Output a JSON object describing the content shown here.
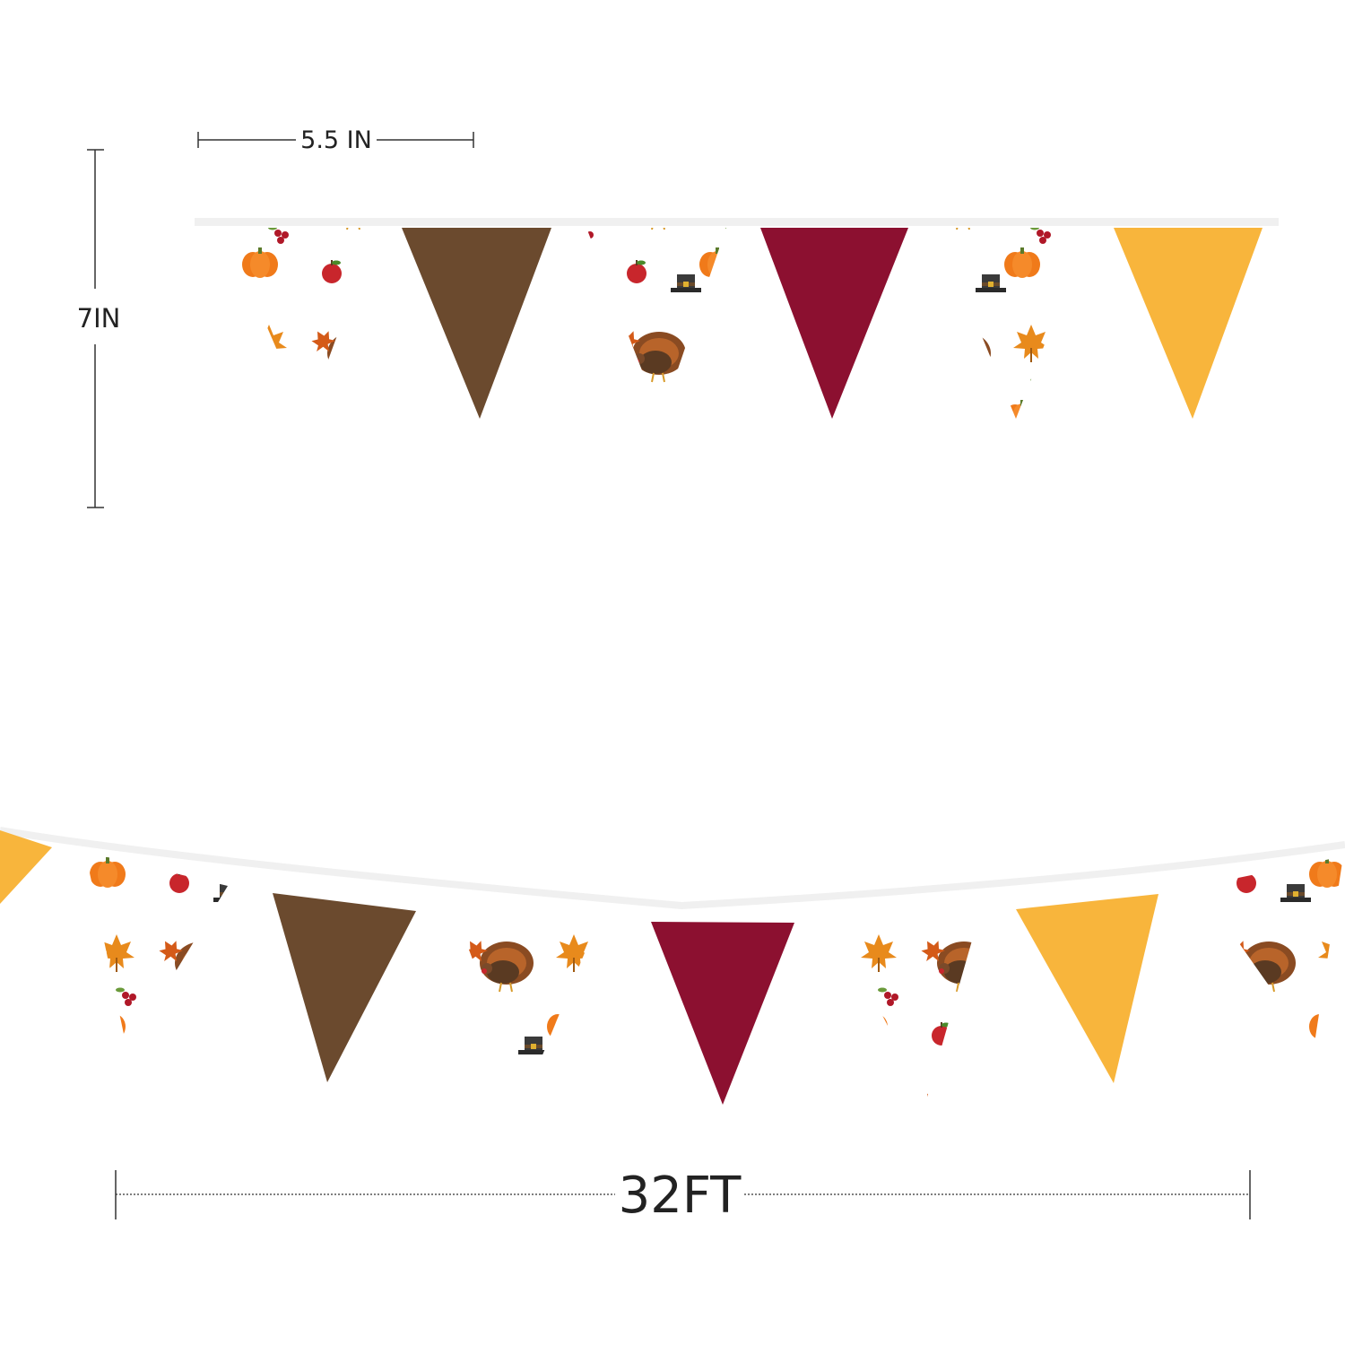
{
  "dimensions": {
    "width_label": "5.5 IN",
    "height_label": "7IN",
    "length_label": "32FT"
  },
  "colors": {
    "brown": "#6b4a2e",
    "burgundy": "#8c1030",
    "gold": "#f8b53c",
    "print_bg": "#ffffff",
    "string": "#f2f2f2",
    "dimension_line": "#333333"
  },
  "pattern_motifs": [
    "turkey-icon",
    "maple-leaf-icon",
    "pumpkin-icon",
    "apple-icon",
    "pilgrim-hat-icon",
    "berry-icon"
  ],
  "rows": [
    {
      "name": "top-row",
      "flags": [
        "print",
        "brown",
        "print",
        "burgundy",
        "print",
        "gold"
      ]
    },
    {
      "name": "bottom-row",
      "flags": [
        "gold",
        "print",
        "brown",
        "print",
        "burgundy",
        "print",
        "gold",
        "print"
      ]
    }
  ]
}
